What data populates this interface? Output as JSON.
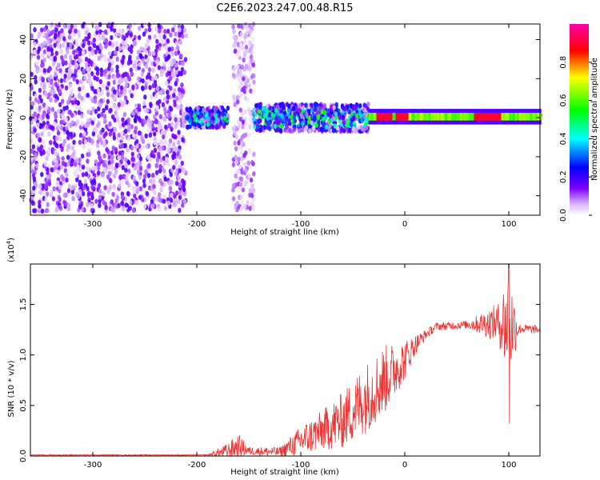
{
  "title": "C2E6.2023.247.00.48.R15",
  "chart_data": [
    {
      "type": "heatmap",
      "xlabel": "Height of straight line (km)",
      "ylabel": "Frequency (Hz)",
      "xlim": [
        -360,
        130
      ],
      "ylim": [
        -50,
        48
      ],
      "x_ticks": [
        "-300",
        "-200",
        "-100",
        "0",
        "100"
      ],
      "y_ticks": [
        "-40",
        "-20",
        "0",
        "20",
        "40"
      ],
      "colorbar": {
        "label": "Normalized spectral amplitude",
        "range": [
          0,
          1
        ],
        "ticks": [
          "0.0",
          "0.2",
          "0.4",
          "0.6",
          "0.8"
        ],
        "colors": [
          "#ffffff",
          "#d6b3ff",
          "#7f00ff",
          "#0000ff",
          "#00ffff",
          "#00ff00",
          "#ffff00",
          "#ff0000",
          "#ff00aa"
        ]
      },
      "regions": [
        {
          "x_range": [
            -360,
            -210
          ],
          "freq_spread": 48,
          "amplitude": 0.15,
          "description": "broadband noise"
        },
        {
          "x_range": [
            -210,
            -170
          ],
          "freq_spread": 5,
          "amplitude": 0.4
        },
        {
          "x_range": [
            -165,
            -145
          ],
          "freq_spread": 48,
          "amplitude": 0.1
        },
        {
          "x_range": [
            -145,
            -35
          ],
          "freq_spread": 7,
          "amplitude": 0.45
        },
        {
          "x_range": [
            -35,
            130
          ],
          "freq_spread": 2,
          "amplitude": 0.9
        }
      ]
    },
    {
      "type": "line",
      "xlabel": "Height of straight line (km)",
      "ylabel": "SNR (10 * v/v)",
      "multiplier_label": "(x10",
      "multiplier_exp": "4",
      "multiplier_close": ")",
      "xlim": [
        -360,
        130
      ],
      "ylim": [
        0,
        1.9
      ],
      "x_ticks": [
        "-300",
        "-200",
        "-100",
        "0",
        "100"
      ],
      "y_ticks": [
        "0.0",
        "0.5",
        "1.0",
        "1.5"
      ],
      "color": "#ee3333",
      "envelope_x": [
        -360,
        -190,
        -170,
        -160,
        -150,
        -120,
        -100,
        -80,
        -60,
        -40,
        -20,
        0,
        10,
        20,
        30,
        60,
        90,
        100,
        110,
        130
      ],
      "envelope_y": [
        0.01,
        0.01,
        0.05,
        0.1,
        0.05,
        0.04,
        0.15,
        0.25,
        0.35,
        0.55,
        0.75,
        0.95,
        1.1,
        1.2,
        1.28,
        1.3,
        1.32,
        1.3,
        1.26,
        1.25
      ],
      "noise_amplitude": [
        0.005,
        0.005,
        0.08,
        0.12,
        0.04,
        0.05,
        0.15,
        0.2,
        0.28,
        0.35,
        0.35,
        0.2,
        0.1,
        0.05,
        0.04,
        0.04,
        0.2,
        0.6,
        0.05,
        0.04
      ],
      "peak": {
        "x": 100,
        "y": 1.9
      },
      "dip": {
        "x": 100,
        "y": 0.32
      }
    }
  ]
}
